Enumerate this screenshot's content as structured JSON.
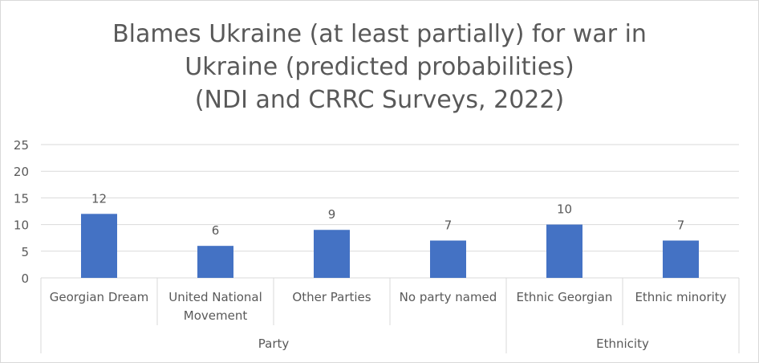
{
  "chart_data": {
    "type": "bar",
    "title_lines": [
      "Blames Ukraine (at least partially) for war in",
      "Ukraine (predicted probabilities)",
      "(NDI and CRRC Surveys, 2022)"
    ],
    "categories": [
      [
        "Georgian Dream"
      ],
      [
        "United National",
        "Movement"
      ],
      [
        "Other Parties"
      ],
      [
        "No party named"
      ],
      [
        "Ethnic Georgian"
      ],
      [
        "Ethnic minority"
      ]
    ],
    "groups": [
      {
        "label": "Party",
        "count": 4
      },
      {
        "label": "Ethnicity",
        "count": 2
      }
    ],
    "values": [
      12,
      6,
      9,
      7,
      10,
      7
    ],
    "ylim": [
      0,
      25
    ],
    "yticks": [
      0,
      5,
      10,
      15,
      20,
      25
    ],
    "grid": true,
    "bar_color": "#4472c4"
  }
}
